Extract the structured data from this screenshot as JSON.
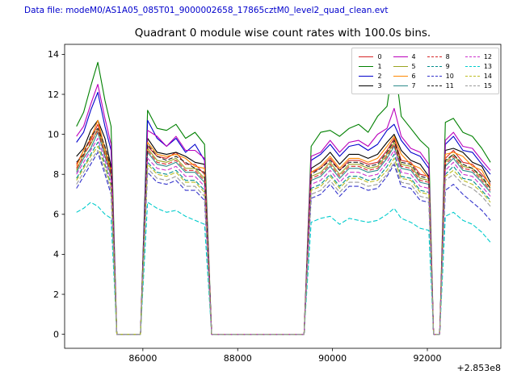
{
  "header": {
    "text": "Data file: modeM0/AS1A05_085T01_9000002658_17865cztM0_level2_quad_clean.evt",
    "color": "#0000cc"
  },
  "chart_data": {
    "type": "line",
    "title": "Quadrant 0 module wise count rates with 100.0s bins.",
    "xlabel": "",
    "ylabel": "",
    "x_offset_label": "+2.853e8",
    "x_offset_value": 285300000,
    "xlim": [
      84350,
      93550
    ],
    "ylim": [
      -0.7,
      14.5
    ],
    "xticks": [
      86000,
      88000,
      90000,
      92000
    ],
    "yticks": [
      0,
      2,
      4,
      6,
      8,
      10,
      12,
      14
    ],
    "grid": false,
    "legend_position": "upper right",
    "legend_columns": 4,
    "x": [
      84600,
      84750,
      84900,
      85050,
      85200,
      85330,
      85450,
      85950,
      86100,
      86300,
      86500,
      86700,
      86900,
      87100,
      87300,
      87450,
      88400,
      89400,
      89550,
      89750,
      89950,
      90150,
      90350,
      90550,
      90750,
      90950,
      91150,
      91300,
      91450,
      91650,
      91850,
      92030,
      92130,
      92260,
      92380,
      92550,
      92750,
      92950,
      93150,
      93330
    ],
    "series": [
      {
        "name": "0",
        "color": "#d62728",
        "dash": false,
        "values": [
          8.5,
          9.2,
          9.7,
          10.5,
          9.3,
          8.2,
          0,
          0,
          9.4,
          8.9,
          8.8,
          9.1,
          8.5,
          8.5,
          8.0,
          0,
          0,
          0,
          8.1,
          8.3,
          8.8,
          8.2,
          8.7,
          8.7,
          8.5,
          8.6,
          9.2,
          9.8,
          8.7,
          8.6,
          8.0,
          7.9,
          0,
          0,
          8.8,
          9.2,
          8.6,
          8.5,
          8.0,
          7.5
        ]
      },
      {
        "name": "1",
        "color": "#008000",
        "dash": false,
        "values": [
          10.4,
          11.1,
          12.4,
          13.6,
          11.7,
          10.4,
          0,
          0,
          11.2,
          10.3,
          10.2,
          10.5,
          9.8,
          10.1,
          9.5,
          0,
          0,
          0,
          9.4,
          10.1,
          10.2,
          9.9,
          10.3,
          10.5,
          10.1,
          10.9,
          11.4,
          13.8,
          10.9,
          10.3,
          9.7,
          9.3,
          0,
          0,
          10.6,
          10.8,
          10.1,
          9.9,
          9.3,
          8.6
        ]
      },
      {
        "name": "2",
        "color": "#0000cc",
        "dash": false,
        "values": [
          9.6,
          10.1,
          11.2,
          12.1,
          10.4,
          9.2,
          0,
          0,
          10.7,
          9.8,
          9.4,
          9.8,
          9.1,
          9.5,
          8.7,
          0,
          0,
          0,
          8.7,
          9.0,
          9.5,
          8.9,
          9.4,
          9.5,
          9.2,
          9.5,
          10.2,
          10.5,
          9.7,
          9.1,
          8.9,
          8.3,
          0,
          0,
          9.5,
          9.9,
          9.2,
          9.1,
          8.5,
          8.0
        ]
      },
      {
        "name": "3",
        "color": "#000000",
        "dash": false,
        "values": [
          8.9,
          9.3,
          10.2,
          10.7,
          9.8,
          8.4,
          0,
          0,
          9.8,
          9.1,
          9.0,
          9.1,
          8.9,
          8.6,
          8.5,
          0,
          0,
          0,
          8.3,
          8.6,
          9.1,
          8.5,
          9.0,
          9.0,
          8.8,
          9.0,
          9.6,
          10.0,
          9.2,
          8.7,
          8.5,
          7.9,
          0,
          0,
          9.2,
          9.3,
          9.1,
          8.6,
          8.4,
          7.6
        ]
      },
      {
        "name": "4",
        "color": "#bb00bb",
        "dash": false,
        "values": [
          9.9,
          10.4,
          11.5,
          12.5,
          10.8,
          9.5,
          0,
          0,
          10.2,
          9.9,
          9.4,
          9.9,
          9.2,
          9.2,
          8.8,
          0,
          0,
          0,
          8.9,
          9.1,
          9.7,
          9.1,
          9.6,
          9.7,
          9.4,
          10.0,
          10.3,
          11.3,
          9.9,
          9.3,
          9.1,
          8.5,
          0,
          0,
          9.7,
          10.1,
          9.4,
          9.3,
          8.7,
          8.2
        ]
      },
      {
        "name": "5",
        "color": "#9aa421",
        "dash": false,
        "values": [
          8.2,
          9.0,
          9.5,
          10.3,
          9.1,
          8.1,
          0,
          0,
          9.3,
          8.7,
          8.6,
          8.8,
          8.3,
          8.3,
          7.8,
          0,
          0,
          0,
          7.9,
          8.1,
          8.6,
          8.0,
          8.5,
          8.5,
          8.3,
          8.4,
          9.0,
          9.6,
          8.5,
          8.4,
          7.8,
          7.7,
          0,
          0,
          8.6,
          9.0,
          8.4,
          8.3,
          7.8,
          7.3
        ]
      },
      {
        "name": "6",
        "color": "#ff8800",
        "dash": false,
        "values": [
          8.4,
          9.2,
          9.8,
          10.7,
          9.3,
          8.3,
          0,
          0,
          9.6,
          9.0,
          8.9,
          9.0,
          8.8,
          8.4,
          8.3,
          0,
          0,
          0,
          8.1,
          8.4,
          8.9,
          8.3,
          8.8,
          8.8,
          8.6,
          8.8,
          9.4,
          9.9,
          9.0,
          8.5,
          8.3,
          7.8,
          0,
          0,
          9.0,
          9.1,
          8.9,
          8.4,
          8.2,
          7.4
        ]
      },
      {
        "name": "7",
        "color": "#2e8b8b",
        "dash": false,
        "values": [
          8.1,
          8.8,
          9.3,
          10.1,
          8.9,
          7.9,
          0,
          0,
          9.1,
          8.5,
          8.4,
          8.6,
          8.1,
          8.1,
          7.6,
          0,
          0,
          0,
          7.7,
          7.9,
          8.4,
          7.8,
          8.3,
          8.3,
          8.1,
          8.2,
          8.8,
          9.4,
          8.3,
          8.2,
          7.6,
          7.5,
          0,
          0,
          8.4,
          8.8,
          8.2,
          8.1,
          7.6,
          7.1
        ]
      },
      {
        "name": "8",
        "color": "#d62728",
        "dash": true,
        "values": [
          8.3,
          8.9,
          9.6,
          10.2,
          9.0,
          8.0,
          0,
          0,
          9.2,
          8.6,
          8.5,
          8.7,
          8.2,
          8.2,
          7.7,
          0,
          0,
          0,
          7.8,
          8.0,
          8.5,
          7.9,
          8.4,
          8.4,
          8.2,
          8.3,
          8.9,
          9.5,
          8.4,
          8.3,
          7.7,
          7.6,
          0,
          0,
          8.5,
          8.9,
          8.3,
          8.2,
          7.7,
          7.2
        ]
      },
      {
        "name": "9",
        "color": "#008b8b",
        "dash": true,
        "values": [
          7.8,
          8.4,
          9.0,
          9.6,
          8.5,
          7.5,
          0,
          0,
          8.6,
          8.1,
          8.0,
          8.2,
          7.7,
          7.7,
          7.2,
          0,
          0,
          0,
          7.3,
          7.5,
          8.0,
          7.4,
          7.9,
          7.9,
          7.7,
          7.8,
          8.4,
          9.0,
          7.9,
          7.8,
          7.2,
          7.1,
          0,
          0,
          8.0,
          8.4,
          7.8,
          7.7,
          7.2,
          6.7
        ]
      },
      {
        "name": "10",
        "color": "#3333cc",
        "dash": true,
        "values": [
          7.3,
          7.9,
          8.5,
          9.1,
          8.0,
          7.0,
          0,
          0,
          8.1,
          7.6,
          7.5,
          7.7,
          7.2,
          7.2,
          6.7,
          0,
          0,
          0,
          6.8,
          7.0,
          7.5,
          6.9,
          7.4,
          7.4,
          7.2,
          7.3,
          7.9,
          8.5,
          7.4,
          7.3,
          6.7,
          6.6,
          0,
          0,
          7.2,
          7.5,
          7.0,
          6.6,
          6.2,
          5.7
        ]
      },
      {
        "name": "11",
        "color": "#222222",
        "dash": true,
        "values": [
          8.6,
          9.0,
          9.9,
          10.3,
          9.4,
          8.3,
          0,
          0,
          9.5,
          8.9,
          8.7,
          8.9,
          8.6,
          8.3,
          8.1,
          0,
          0,
          0,
          8.0,
          8.3,
          8.7,
          8.2,
          8.6,
          8.6,
          8.4,
          8.5,
          9.1,
          9.7,
          8.6,
          8.5,
          7.9,
          7.8,
          0,
          0,
          8.7,
          9.0,
          8.5,
          8.3,
          7.9,
          7.3
        ]
      },
      {
        "name": "12",
        "color": "#cc33cc",
        "dash": true,
        "values": [
          8.0,
          8.6,
          9.2,
          9.8,
          8.7,
          7.7,
          0,
          0,
          8.8,
          8.3,
          8.2,
          8.4,
          7.9,
          7.9,
          7.4,
          0,
          0,
          0,
          7.5,
          7.7,
          8.2,
          7.6,
          8.1,
          8.1,
          7.9,
          8.0,
          8.6,
          9.2,
          8.1,
          8.0,
          7.4,
          7.3,
          0,
          0,
          8.2,
          8.6,
          8.0,
          7.9,
          7.4,
          6.9
        ]
      },
      {
        "name": "13",
        "color": "#00cccc",
        "dash": true,
        "values": [
          6.1,
          6.3,
          6.6,
          6.4,
          6.0,
          5.8,
          0,
          0,
          6.6,
          6.3,
          6.1,
          6.2,
          5.9,
          5.7,
          5.5,
          0,
          0,
          0,
          5.6,
          5.8,
          5.9,
          5.5,
          5.8,
          5.7,
          5.6,
          5.7,
          6.0,
          6.3,
          5.8,
          5.6,
          5.3,
          5.2,
          0,
          0,
          5.9,
          6.1,
          5.7,
          5.5,
          5.1,
          4.6
        ]
      },
      {
        "name": "14",
        "color": "#bcbd22",
        "dash": true,
        "values": [
          7.7,
          8.3,
          8.9,
          9.4,
          8.4,
          7.4,
          0,
          0,
          8.5,
          8.0,
          7.9,
          8.1,
          7.6,
          7.6,
          7.1,
          0,
          0,
          0,
          7.2,
          7.4,
          7.9,
          7.3,
          7.8,
          7.8,
          7.6,
          7.7,
          8.2,
          8.8,
          7.8,
          7.7,
          7.1,
          7.0,
          0,
          0,
          7.9,
          8.2,
          7.7,
          7.5,
          7.1,
          6.6
        ]
      },
      {
        "name": "15",
        "color": "#999999",
        "dash": true,
        "values": [
          7.5,
          8.1,
          8.7,
          9.2,
          8.2,
          7.2,
          0,
          0,
          8.3,
          7.8,
          7.7,
          7.9,
          7.4,
          7.4,
          6.9,
          0,
          0,
          0,
          7.0,
          7.2,
          7.7,
          7.1,
          7.6,
          7.6,
          7.4,
          7.5,
          8.0,
          8.6,
          7.6,
          7.5,
          6.9,
          6.8,
          0,
          0,
          7.7,
          8.0,
          7.5,
          7.3,
          6.9,
          6.4
        ]
      }
    ]
  }
}
